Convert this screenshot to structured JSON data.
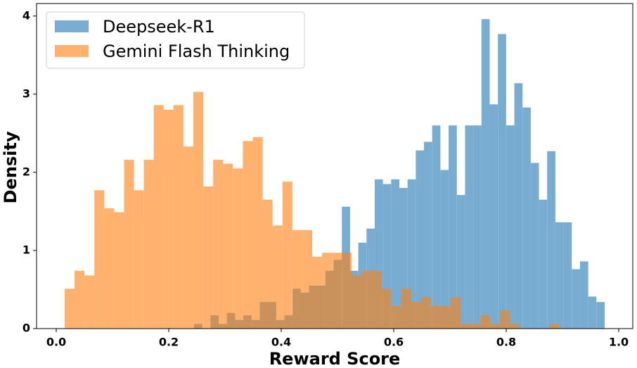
{
  "chart_data": {
    "type": "histogram",
    "xlabel": "Reward Score",
    "ylabel": "Density",
    "xlim": [
      -0.035,
      1.025
    ],
    "ylim": [
      0,
      4.16
    ],
    "xticks": [
      {
        "value": 0,
        "label": "0.0"
      },
      {
        "value": 0.2,
        "label": "0.2"
      },
      {
        "value": 0.4,
        "label": "0.4"
      },
      {
        "value": 0.6,
        "label": "0.6"
      },
      {
        "value": 0.8,
        "label": "0.8"
      },
      {
        "value": 1,
        "label": "1.0"
      }
    ],
    "yticks": [
      0,
      1,
      2,
      3,
      4
    ],
    "legend": "upper left",
    "opacity": 0.6,
    "series": [
      {
        "name": "Deepseek-R1",
        "color": "#1f77b4",
        "bins": [
          0.245,
          0.2596,
          0.2742,
          0.2888,
          0.3034,
          0.318,
          0.3326,
          0.3472,
          0.3618,
          0.3764,
          0.391,
          0.4056,
          0.4202,
          0.4348,
          0.4494,
          0.464,
          0.4786,
          0.4932,
          0.5078,
          0.5224,
          0.537,
          0.5516,
          0.5662,
          0.5808,
          0.5954,
          0.61,
          0.6246,
          0.6392,
          0.6538,
          0.6684,
          0.683,
          0.6976,
          0.7122,
          0.7268,
          0.7414,
          0.756,
          0.7706,
          0.7852,
          0.7998,
          0.8144,
          0.829,
          0.8436,
          0.8582,
          0.8728,
          0.8874,
          0.902,
          0.9166,
          0.9312,
          0.9458,
          0.9604,
          0.975
        ],
        "values": [
          0.06,
          0,
          0.17,
          0.06,
          0.2,
          0.11,
          0.17,
          0.11,
          0.34,
          0.34,
          0.11,
          0.17,
          0.51,
          0.46,
          0.55,
          0.55,
          0.74,
          0.88,
          1.56,
          0.74,
          1.1,
          1.28,
          1.91,
          1.85,
          1.91,
          1.8,
          1.91,
          2.28,
          2.39,
          2.6,
          2.03,
          2.6,
          1.71,
          2.6,
          2.6,
          3.96,
          2.87,
          3.77,
          2.6,
          3.14,
          2.83,
          2.12,
          1.65,
          2.27,
          1.36,
          1.36,
          0.76,
          0.86,
          0.41,
          0.34
        ]
      },
      {
        "name": "Gemini Flash Thinking",
        "color": "#ff7f0e",
        "bins": [
          0.015,
          0.0326,
          0.0502,
          0.0678,
          0.0854,
          0.103,
          0.1206,
          0.1382,
          0.1558,
          0.1734,
          0.191,
          0.2086,
          0.2262,
          0.2438,
          0.2614,
          0.279,
          0.2966,
          0.3142,
          0.3318,
          0.3494,
          0.367,
          0.3846,
          0.4022,
          0.4198,
          0.4374,
          0.455,
          0.4726,
          0.4902,
          0.5078,
          0.5254,
          0.543,
          0.5606,
          0.5782,
          0.5958,
          0.6134,
          0.631,
          0.6486,
          0.6662,
          0.6838,
          0.7014,
          0.719,
          0.7366,
          0.7542,
          0.7718,
          0.7894,
          0.807,
          0.8246,
          0.8422,
          0.8598,
          0.8774,
          0.895
        ],
        "values": [
          0.51,
          0.74,
          0.68,
          1.77,
          1.54,
          1.49,
          2.16,
          1.77,
          2.16,
          2.86,
          2.8,
          2.86,
          2.33,
          3.03,
          1.82,
          2.16,
          2.11,
          2.05,
          2.4,
          2.45,
          1.65,
          1.32,
          1.88,
          1.26,
          1.26,
          0.92,
          0.97,
          0.97,
          0.97,
          0.68,
          0.74,
          0.74,
          0.51,
          0.29,
          0.51,
          0.34,
          0.4,
          0.29,
          0.29,
          0.4,
          0.06,
          0.06,
          0.17,
          0.06,
          0.23,
          0.06,
          0,
          0,
          0,
          0.06
        ]
      }
    ]
  }
}
